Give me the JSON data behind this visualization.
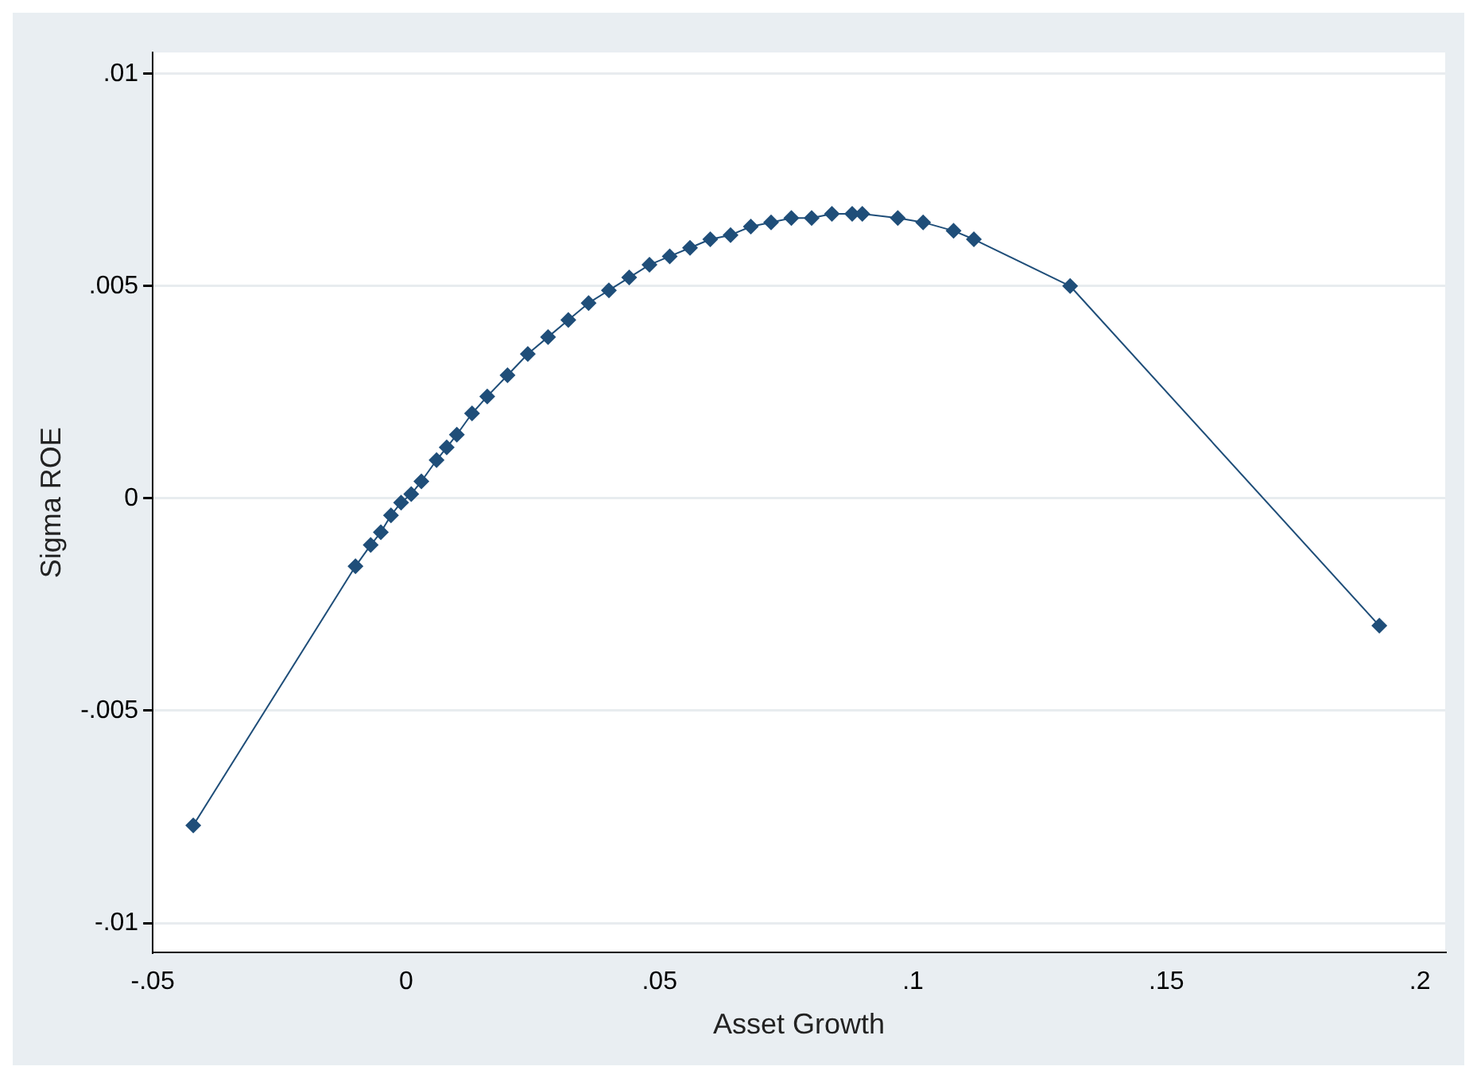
{
  "chart_data": {
    "type": "line",
    "xlabel": "Asset Growth",
    "ylabel": "Sigma ROE",
    "xlim": [
      -0.05,
      0.205
    ],
    "ylim": [
      -0.0107,
      0.0105
    ],
    "xticks": [
      {
        "value": -0.05,
        "label": "-.05"
      },
      0,
      {
        "value": 0.05,
        "label": ".05"
      },
      {
        "value": 0.1,
        "label": ".1"
      },
      {
        "value": 0.15,
        "label": ".15"
      },
      {
        "value": 0.2,
        "label": ".2"
      }
    ],
    "yticks": [
      {
        "value": -0.01,
        "label": "-.01"
      },
      {
        "value": -0.005,
        "label": "-.005"
      },
      0,
      {
        "value": 0.005,
        "label": ".005"
      },
      {
        "value": 0.01,
        "label": ".01"
      }
    ],
    "grid": "y",
    "legend": false,
    "marker": "diamond",
    "line_style": "solid",
    "series": [
      {
        "color": "#1f4e79",
        "x": [
          -0.042,
          -0.01,
          -0.007,
          -0.005,
          -0.003,
          -0.001,
          0.001,
          0.003,
          0.006,
          0.008,
          0.01,
          0.013,
          0.016,
          0.02,
          0.024,
          0.028,
          0.032,
          0.036,
          0.04,
          0.044,
          0.048,
          0.052,
          0.056,
          0.06,
          0.064,
          0.068,
          0.072,
          0.076,
          0.08,
          0.084,
          0.088,
          0.09,
          0.097,
          0.102,
          0.108,
          0.112,
          0.131,
          0.192
        ],
        "values": [
          -0.0077,
          -0.0016,
          -0.0011,
          -0.0008,
          -0.0004,
          -0.0001,
          0.0001,
          0.0004,
          0.0009,
          0.0012,
          0.0015,
          0.002,
          0.0024,
          0.0029,
          0.0034,
          0.0038,
          0.0042,
          0.0046,
          0.0049,
          0.0052,
          0.0055,
          0.0057,
          0.0059,
          0.0061,
          0.0062,
          0.0064,
          0.0065,
          0.0066,
          0.0066,
          0.0067,
          0.0067,
          0.0067,
          0.0066,
          0.0065,
          0.0063,
          0.0061,
          0.005,
          -0.003
        ]
      }
    ]
  }
}
